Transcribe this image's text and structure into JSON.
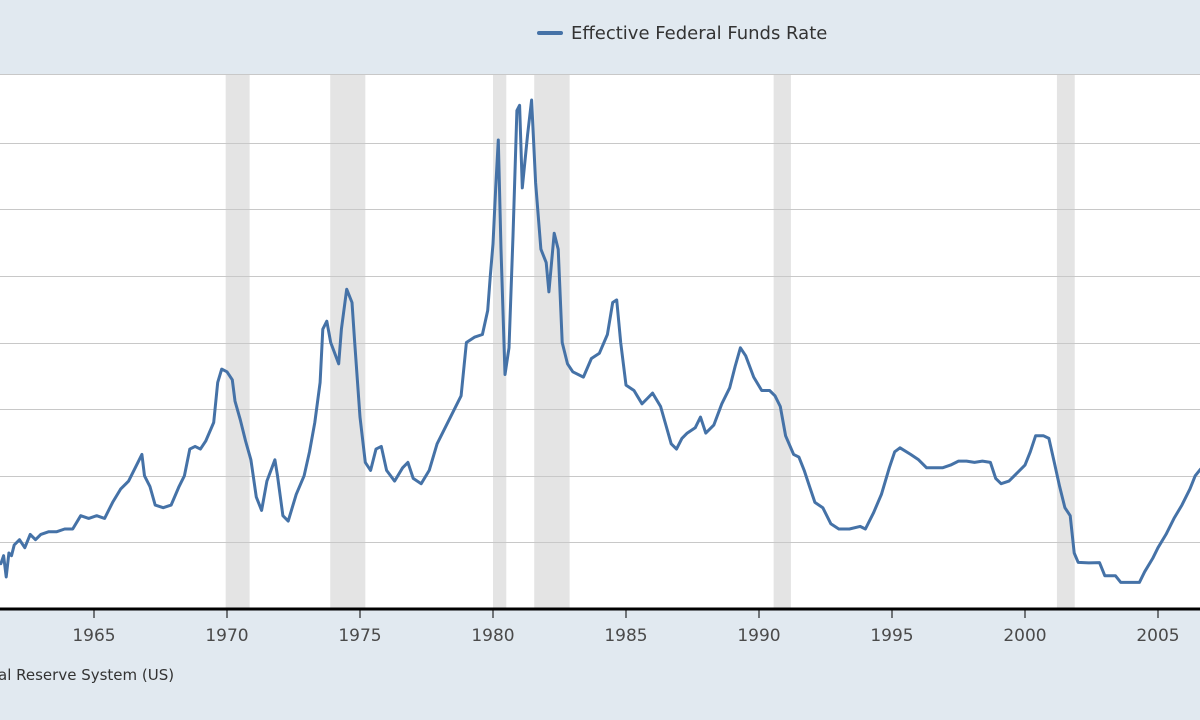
{
  "chart_data": {
    "type": "line",
    "title": "",
    "xlabel": "",
    "ylabel": "",
    "x_ticks": [
      1965,
      1970,
      1975,
      1980,
      1985,
      1990,
      1995,
      2000,
      2005
    ],
    "x_tick_labels": [
      "1965",
      "1970",
      "1975",
      "1980",
      "1985",
      "1990",
      "1995",
      "2000",
      "2005"
    ],
    "xlim": [
      1961.5,
      2006.6
    ],
    "ylim": [
      0,
      20
    ],
    "y_gridlines": [
      2.5,
      5,
      7.5,
      10,
      12.5,
      15,
      17.5
    ],
    "grid": true,
    "legend": {
      "position": "top-center"
    },
    "colors": {
      "line": "#4572a7",
      "recession": "#e4e4e4",
      "background": "#e1e9f0",
      "plot": "#ffffff"
    },
    "recessions": [
      [
        1969.95,
        1970.85
      ],
      [
        1973.88,
        1975.2
      ],
      [
        1980.0,
        1980.5
      ],
      [
        1981.55,
        1982.88
      ],
      [
        1990.55,
        1991.2
      ],
      [
        2001.2,
        2001.87
      ]
    ],
    "series": [
      {
        "name": "Effective Federal Funds Rate",
        "points": [
          [
            1961.5,
            1.7
          ],
          [
            1961.6,
            2.0
          ],
          [
            1961.7,
            1.2
          ],
          [
            1961.8,
            2.1
          ],
          [
            1961.9,
            2.0
          ],
          [
            1962.0,
            2.4
          ],
          [
            1962.2,
            2.6
          ],
          [
            1962.4,
            2.3
          ],
          [
            1962.6,
            2.8
          ],
          [
            1962.8,
            2.6
          ],
          [
            1963.0,
            2.8
          ],
          [
            1963.3,
            2.9
          ],
          [
            1963.6,
            2.9
          ],
          [
            1963.9,
            3.0
          ],
          [
            1964.2,
            3.0
          ],
          [
            1964.5,
            3.5
          ],
          [
            1964.8,
            3.4
          ],
          [
            1965.1,
            3.5
          ],
          [
            1965.4,
            3.4
          ],
          [
            1965.7,
            4.0
          ],
          [
            1966.0,
            4.5
          ],
          [
            1966.3,
            4.8
          ],
          [
            1966.6,
            5.4
          ],
          [
            1966.8,
            5.8
          ],
          [
            1966.9,
            5.0
          ],
          [
            1967.1,
            4.6
          ],
          [
            1967.3,
            3.9
          ],
          [
            1967.6,
            3.8
          ],
          [
            1967.9,
            3.9
          ],
          [
            1968.2,
            4.6
          ],
          [
            1968.4,
            5.0
          ],
          [
            1968.6,
            6.0
          ],
          [
            1968.8,
            6.1
          ],
          [
            1969.0,
            6.0
          ],
          [
            1969.2,
            6.3
          ],
          [
            1969.5,
            7.0
          ],
          [
            1969.65,
            8.5
          ],
          [
            1969.8,
            9.0
          ],
          [
            1970.0,
            8.9
          ],
          [
            1970.2,
            8.6
          ],
          [
            1970.3,
            7.8
          ],
          [
            1970.5,
            7.1
          ],
          [
            1970.7,
            6.3
          ],
          [
            1970.9,
            5.6
          ],
          [
            1971.1,
            4.2
          ],
          [
            1971.3,
            3.7
          ],
          [
            1971.5,
            4.8
          ],
          [
            1971.8,
            5.6
          ],
          [
            1971.9,
            5.0
          ],
          [
            1972.1,
            3.5
          ],
          [
            1972.3,
            3.3
          ],
          [
            1972.6,
            4.3
          ],
          [
            1972.9,
            5.0
          ],
          [
            1973.1,
            5.9
          ],
          [
            1973.3,
            7.0
          ],
          [
            1973.5,
            8.5
          ],
          [
            1973.6,
            10.5
          ],
          [
            1973.75,
            10.8
          ],
          [
            1973.9,
            10.0
          ],
          [
            1974.2,
            9.2
          ],
          [
            1974.3,
            10.5
          ],
          [
            1974.5,
            12.0
          ],
          [
            1974.7,
            11.5
          ],
          [
            1974.8,
            10.0
          ],
          [
            1975.0,
            7.2
          ],
          [
            1975.2,
            5.5
          ],
          [
            1975.4,
            5.2
          ],
          [
            1975.6,
            6.0
          ],
          [
            1975.8,
            6.1
          ],
          [
            1976.0,
            5.2
          ],
          [
            1976.3,
            4.8
          ],
          [
            1976.6,
            5.3
          ],
          [
            1976.8,
            5.5
          ],
          [
            1977.0,
            4.9
          ],
          [
            1977.3,
            4.7
          ],
          [
            1977.6,
            5.2
          ],
          [
            1977.9,
            6.2
          ],
          [
            1978.2,
            6.8
          ],
          [
            1978.5,
            7.4
          ],
          [
            1978.8,
            8.0
          ],
          [
            1979.0,
            10.0
          ],
          [
            1979.3,
            10.2
          ],
          [
            1979.6,
            10.3
          ],
          [
            1979.8,
            11.2
          ],
          [
            1979.9,
            12.5
          ],
          [
            1980.0,
            13.7
          ],
          [
            1980.1,
            15.8
          ],
          [
            1980.2,
            17.6
          ],
          [
            1980.3,
            13.5
          ],
          [
            1980.45,
            8.8
          ],
          [
            1980.6,
            9.8
          ],
          [
            1980.75,
            14.0
          ],
          [
            1980.9,
            18.7
          ],
          [
            1981.0,
            18.9
          ],
          [
            1981.1,
            15.8
          ],
          [
            1981.3,
            17.8
          ],
          [
            1981.45,
            19.1
          ],
          [
            1981.6,
            16.0
          ],
          [
            1981.8,
            13.5
          ],
          [
            1982.0,
            13.0
          ],
          [
            1982.1,
            11.9
          ],
          [
            1982.3,
            14.1
          ],
          [
            1982.45,
            13.5
          ],
          [
            1982.6,
            10.0
          ],
          [
            1982.8,
            9.2
          ],
          [
            1983.0,
            8.9
          ],
          [
            1983.4,
            8.7
          ],
          [
            1983.7,
            9.4
          ],
          [
            1984.0,
            9.6
          ],
          [
            1984.3,
            10.3
          ],
          [
            1984.5,
            11.5
          ],
          [
            1984.65,
            11.6
          ],
          [
            1984.8,
            10.0
          ],
          [
            1985.0,
            8.4
          ],
          [
            1985.3,
            8.2
          ],
          [
            1985.6,
            7.7
          ],
          [
            1985.8,
            7.9
          ],
          [
            1986.0,
            8.1
          ],
          [
            1986.3,
            7.6
          ],
          [
            1986.5,
            6.9
          ],
          [
            1986.7,
            6.2
          ],
          [
            1986.9,
            6.0
          ],
          [
            1987.1,
            6.4
          ],
          [
            1987.3,
            6.6
          ],
          [
            1987.6,
            6.8
          ],
          [
            1987.8,
            7.2
          ],
          [
            1988.0,
            6.6
          ],
          [
            1988.3,
            6.9
          ],
          [
            1988.6,
            7.7
          ],
          [
            1988.9,
            8.3
          ],
          [
            1989.1,
            9.1
          ],
          [
            1989.3,
            9.8
          ],
          [
            1989.5,
            9.5
          ],
          [
            1989.8,
            8.7
          ],
          [
            1990.1,
            8.2
          ],
          [
            1990.4,
            8.2
          ],
          [
            1990.6,
            8.0
          ],
          [
            1990.8,
            7.6
          ],
          [
            1991.0,
            6.5
          ],
          [
            1991.3,
            5.8
          ],
          [
            1991.5,
            5.7
          ],
          [
            1991.7,
            5.2
          ],
          [
            1991.9,
            4.6
          ],
          [
            1992.1,
            4.0
          ],
          [
            1992.4,
            3.8
          ],
          [
            1992.7,
            3.2
          ],
          [
            1993.0,
            3.0
          ],
          [
            1993.4,
            3.0
          ],
          [
            1993.8,
            3.1
          ],
          [
            1994.0,
            3.0
          ],
          [
            1994.3,
            3.6
          ],
          [
            1994.6,
            4.3
          ],
          [
            1994.9,
            5.3
          ],
          [
            1995.1,
            5.9
          ],
          [
            1995.3,
            6.05
          ],
          [
            1995.7,
            5.8
          ],
          [
            1996.0,
            5.6
          ],
          [
            1996.3,
            5.3
          ],
          [
            1996.6,
            5.3
          ],
          [
            1996.9,
            5.3
          ],
          [
            1997.2,
            5.4
          ],
          [
            1997.5,
            5.55
          ],
          [
            1997.8,
            5.55
          ],
          [
            1998.1,
            5.5
          ],
          [
            1998.4,
            5.55
          ],
          [
            1998.7,
            5.5
          ],
          [
            1998.9,
            4.9
          ],
          [
            1999.1,
            4.7
          ],
          [
            1999.4,
            4.8
          ],
          [
            1999.7,
            5.1
          ],
          [
            2000.0,
            5.4
          ],
          [
            2000.2,
            5.9
          ],
          [
            2000.4,
            6.5
          ],
          [
            2000.7,
            6.5
          ],
          [
            2000.9,
            6.4
          ],
          [
            2001.1,
            5.5
          ],
          [
            2001.3,
            4.6
          ],
          [
            2001.5,
            3.8
          ],
          [
            2001.7,
            3.5
          ],
          [
            2001.85,
            2.1
          ],
          [
            2002.0,
            1.75
          ],
          [
            2002.4,
            1.73
          ],
          [
            2002.8,
            1.74
          ],
          [
            2003.0,
            1.25
          ],
          [
            2003.4,
            1.25
          ],
          [
            2003.6,
            1.0
          ],
          [
            2004.0,
            1.0
          ],
          [
            2004.3,
            1.0
          ],
          [
            2004.5,
            1.4
          ],
          [
            2004.8,
            1.9
          ],
          [
            2005.0,
            2.3
          ],
          [
            2005.3,
            2.8
          ],
          [
            2005.6,
            3.4
          ],
          [
            2005.9,
            3.9
          ],
          [
            2006.2,
            4.5
          ],
          [
            2006.4,
            5.0
          ],
          [
            2006.6,
            5.25
          ]
        ]
      }
    ]
  },
  "source_text": "al Reserve System (US)"
}
